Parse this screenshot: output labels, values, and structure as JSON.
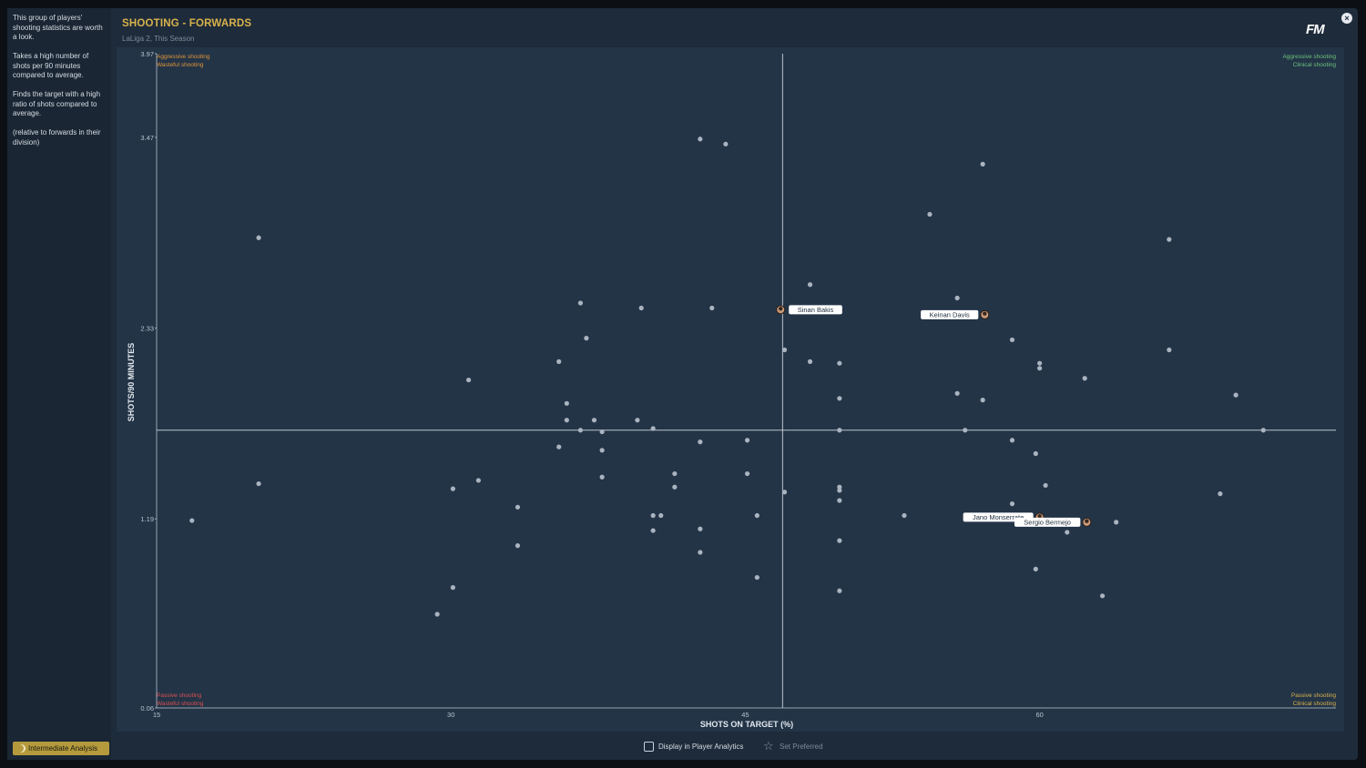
{
  "sidebar": {
    "intro": "This group of players' shooting statistics are worth a look.",
    "point1": "Takes a high number of shots per 90 minutes compared to average.",
    "point2": "Finds the target with a high ratio of shots compared to average.",
    "note": "(relative to forwards in their division)",
    "analysis_button": "Intermediate Analysis"
  },
  "header": {
    "title": "SHOOTING - FORWARDS",
    "subtitle": "LaLiga 2, This Season",
    "logo": "FM",
    "close_icon": "close-icon"
  },
  "quadrants": {
    "top_left": [
      "Aggressive shooting",
      "Wasteful shooting"
    ],
    "top_right": [
      "Aggressive shooting",
      "Clinical shooting"
    ],
    "bottom_left": [
      "Passive shooting",
      "Wasteful shooting"
    ],
    "bottom_right": [
      "Passive shooting",
      "Clinical shooting"
    ],
    "colors": {
      "aggressive": "#e0953a",
      "wasteful": "#e0953a",
      "passive": "#d95050",
      "clinical": "#5fbf6a",
      "top_right": "#6cc27a",
      "bottom_right": "#d9b24c"
    }
  },
  "footer": {
    "display_label": "Display in Player Analytics",
    "preferred_label": "Set Preferred"
  },
  "chart_data": {
    "type": "scatter",
    "title": "SHOOTING - FORWARDS",
    "subtitle": "LaLiga 2, This Season",
    "xlabel": "SHOTS ON TARGET (%)",
    "ylabel": "SHOTS/90 MINUTES",
    "xlim": [
      15,
      75.1
    ],
    "ylim": [
      0.06,
      3.97
    ],
    "x_ticks": [
      "15",
      "30",
      "45",
      "60"
    ],
    "y_ticks": [
      "3.97",
      "3.47",
      "2.33",
      "1.19",
      "0.06"
    ],
    "y_tick_values": [
      3.97,
      3.47,
      2.33,
      1.19,
      0.06
    ],
    "x_tick_values": [
      15,
      30,
      45,
      60
    ],
    "average_x": 46.9,
    "average_y": 1.72,
    "points": [
      [
        16.8,
        1.18
      ],
      [
        20.2,
        2.87
      ],
      [
        20.2,
        1.4
      ],
      [
        29.3,
        0.62
      ],
      [
        30.1,
        1.37
      ],
      [
        30.1,
        0.78
      ],
      [
        30.9,
        2.02
      ],
      [
        31.4,
        1.42
      ],
      [
        33.4,
        1.26
      ],
      [
        33.4,
        1.03
      ],
      [
        35.5,
        2.13
      ],
      [
        35.5,
        1.62
      ],
      [
        35.9,
        1.88
      ],
      [
        35.9,
        1.78
      ],
      [
        36.6,
        1.72
      ],
      [
        36.6,
        2.48
      ],
      [
        36.9,
        2.27
      ],
      [
        37.3,
        1.78
      ],
      [
        37.7,
        1.71
      ],
      [
        37.7,
        1.6
      ],
      [
        37.7,
        1.44
      ],
      [
        39.5,
        1.78
      ],
      [
        39.7,
        2.45
      ],
      [
        40.3,
        1.73
      ],
      [
        40.3,
        1.21
      ],
      [
        40.3,
        1.12
      ],
      [
        40.7,
        1.21
      ],
      [
        41.4,
        1.46
      ],
      [
        41.4,
        1.38
      ],
      [
        42.7,
        3.46
      ],
      [
        42.7,
        1.65
      ],
      [
        42.7,
        1.13
      ],
      [
        42.7,
        0.99
      ],
      [
        43.3,
        2.45
      ],
      [
        44.0,
        3.43
      ],
      [
        45.1,
        1.66
      ],
      [
        45.1,
        1.46
      ],
      [
        45.6,
        1.21
      ],
      [
        45.6,
        0.84
      ],
      [
        47.0,
        2.2
      ],
      [
        47.0,
        1.35
      ],
      [
        48.3,
        2.59
      ],
      [
        48.3,
        2.13
      ],
      [
        49.8,
        2.12
      ],
      [
        49.8,
        1.91
      ],
      [
        49.8,
        1.72
      ],
      [
        49.8,
        1.38
      ],
      [
        49.8,
        1.36
      ],
      [
        49.8,
        1.3
      ],
      [
        49.8,
        1.06
      ],
      [
        49.8,
        0.76
      ],
      [
        53.1,
        1.21
      ],
      [
        54.4,
        3.01
      ],
      [
        55.8,
        2.51
      ],
      [
        55.8,
        1.94
      ],
      [
        56.2,
        1.72
      ],
      [
        57.1,
        3.31
      ],
      [
        57.1,
        1.9
      ],
      [
        58.6,
        2.26
      ],
      [
        58.6,
        1.66
      ],
      [
        58.6,
        1.28
      ],
      [
        59.8,
        1.58
      ],
      [
        59.8,
        0.89
      ],
      [
        60.3,
        1.39
      ],
      [
        60.0,
        2.12
      ],
      [
        60.0,
        2.09
      ],
      [
        61.4,
        1.11
      ],
      [
        62.3,
        2.03
      ],
      [
        63.2,
        0.73
      ],
      [
        63.9,
        1.17
      ],
      [
        66.6,
        2.86
      ],
      [
        66.6,
        2.2
      ],
      [
        69.2,
        1.34
      ],
      [
        70.0,
        1.93
      ],
      [
        71.4,
        1.72
      ]
    ],
    "labelled_players": [
      {
        "name": "Sinan Bakis",
        "x": 46.8,
        "y": 2.44,
        "side": "right"
      },
      {
        "name": "Keinan Davis",
        "x": 57.2,
        "y": 2.41,
        "side": "left"
      },
      {
        "name": "Jano Monserrate",
        "x": 60.0,
        "y": 1.2,
        "side": "left"
      },
      {
        "name": "Sergio Bermejo",
        "x": 62.4,
        "y": 1.17,
        "side": "left"
      }
    ],
    "grid": false,
    "point_color": "#a9b4c0",
    "axis_color": "#c9d2dc"
  }
}
